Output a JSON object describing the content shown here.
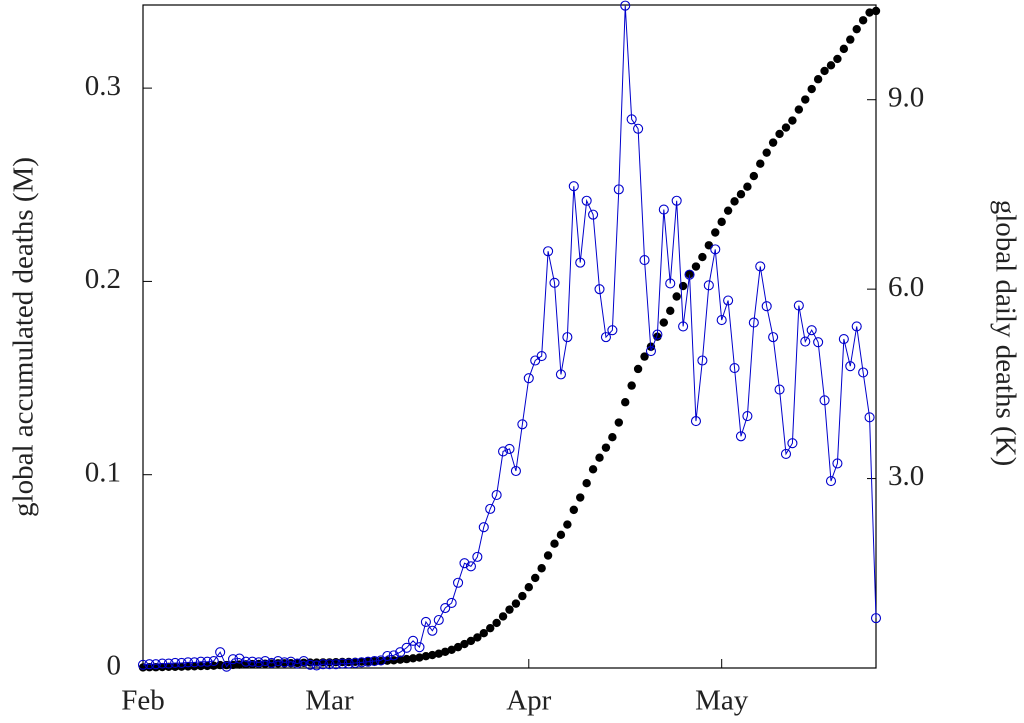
{
  "chart_data": {
    "type": "line",
    "y_label": "global accumulated deaths (M)",
    "y2_label": "global daily deaths (K)",
    "categories": [
      "Feb",
      null,
      null,
      null,
      null,
      null,
      null,
      null,
      null,
      null,
      null,
      null,
      null,
      null,
      null,
      null,
      null,
      null,
      null,
      null,
      null,
      null,
      null,
      null,
      null,
      null,
      null,
      null,
      null,
      "Mar",
      null,
      null,
      null,
      null,
      null,
      null,
      null,
      null,
      null,
      null,
      null,
      null,
      null,
      null,
      null,
      null,
      null,
      null,
      null,
      null,
      null,
      null,
      null,
      null,
      null,
      null,
      null,
      null,
      null,
      null,
      "Apr",
      null,
      null,
      null,
      null,
      null,
      null,
      null,
      null,
      null,
      null,
      null,
      null,
      null,
      null,
      null,
      null,
      null,
      null,
      null,
      null,
      null,
      null,
      null,
      null,
      null,
      null,
      null,
      null,
      null,
      "May",
      null,
      null,
      null,
      null,
      null,
      null,
      null,
      null,
      null,
      null,
      null,
      null,
      null,
      null,
      null,
      null,
      null,
      null,
      null,
      null,
      null,
      null,
      null,
      null
    ],
    "series": [
      {
        "color": "#000000",
        "marker": "dot",
        "axis": "y",
        "values": [
          0.0003,
          0.0004,
          0.0004,
          0.0005,
          0.0006,
          0.0006,
          0.0007,
          0.0008,
          0.0009,
          0.001,
          0.0011,
          0.0012,
          0.0015,
          0.0015,
          0.0016,
          0.0018,
          0.0019,
          0.002,
          0.0021,
          0.0022,
          0.0023,
          0.0024,
          0.0024,
          0.0025,
          0.0026,
          0.0027,
          0.0028,
          0.0028,
          0.0029,
          0.0029,
          0.003,
          0.0031,
          0.0031,
          0.0032,
          0.0033,
          0.0034,
          0.0035,
          0.0036,
          0.0038,
          0.004,
          0.0043,
          0.0046,
          0.005,
          0.0054,
          0.0061,
          0.0067,
          0.0074,
          0.0084,
          0.0094,
          0.0108,
          0.0124,
          0.014,
          0.0158,
          0.018,
          0.0206,
          0.0233,
          0.0267,
          0.0302,
          0.0333,
          0.0372,
          0.0418,
          0.0466,
          0.0516,
          0.0582,
          0.0643,
          0.0689,
          0.0742,
          0.0818,
          0.0882,
          0.0956,
          0.1028,
          0.1088,
          0.114,
          0.1194,
          0.127,
          0.1375,
          0.1461,
          0.1547,
          0.1611,
          0.1662,
          0.1714,
          0.1787,
          0.1848,
          0.1922,
          0.1976,
          0.2038,
          0.2077,
          0.2126,
          0.2187,
          0.2253,
          0.2308,
          0.2366,
          0.2414,
          0.2451,
          0.249,
          0.2545,
          0.2609,
          0.2666,
          0.2718,
          0.2763,
          0.2796,
          0.2832,
          0.2889,
          0.2941,
          0.2995,
          0.3046,
          0.3089,
          0.3118,
          0.3151,
          0.3203,
          0.3251,
          0.3305,
          0.3351,
          0.3391,
          0.3399
        ]
      },
      {
        "color": "#0000cc",
        "marker": "circle",
        "axis": "y2",
        "values": [
          0.05,
          0.06,
          0.06,
          0.07,
          0.07,
          0.08,
          0.08,
          0.09,
          0.09,
          0.1,
          0.1,
          0.11,
          0.25,
          0.02,
          0.14,
          0.15,
          0.1,
          0.1,
          0.09,
          0.11,
          0.08,
          0.11,
          0.09,
          0.1,
          0.07,
          0.11,
          0.05,
          0.04,
          0.06,
          0.06,
          0.06,
          0.07,
          0.07,
          0.08,
          0.09,
          0.1,
          0.11,
          0.12,
          0.19,
          0.2,
          0.25,
          0.32,
          0.43,
          0.33,
          0.73,
          0.59,
          0.76,
          0.95,
          1.03,
          1.35,
          1.66,
          1.61,
          1.76,
          2.23,
          2.52,
          2.74,
          3.43,
          3.47,
          3.12,
          3.86,
          4.59,
          4.87,
          4.94,
          6.6,
          6.1,
          4.65,
          5.24,
          7.63,
          6.42,
          7.4,
          7.18,
          6.0,
          5.24,
          5.35,
          7.58,
          10.49,
          8.69,
          8.54,
          6.46,
          5.02,
          5.28,
          7.26,
          6.09,
          7.4,
          5.41,
          6.23,
          3.91,
          4.87,
          6.06,
          6.63,
          5.51,
          5.82,
          4.75,
          3.67,
          3.99,
          5.47,
          6.36,
          5.73,
          5.24,
          4.41,
          3.39,
          3.56,
          5.74,
          5.17,
          5.35,
          5.16,
          4.24,
          2.96,
          3.24,
          5.21,
          4.78,
          5.41,
          4.68,
          3.97,
          0.79
        ]
      }
    ],
    "ylim": [
      0,
      0.343
    ],
    "yticks": [
      0,
      0.1,
      0.2,
      0.3
    ],
    "y2lim": [
      0,
      10.5
    ],
    "y2ticks": [
      {
        "value": 3,
        "label": "3.0"
      },
      {
        "value": 6,
        "label": "6.0"
      },
      {
        "value": 9,
        "label": "9.0"
      }
    ],
    "y2_color": "#0000cc"
  }
}
